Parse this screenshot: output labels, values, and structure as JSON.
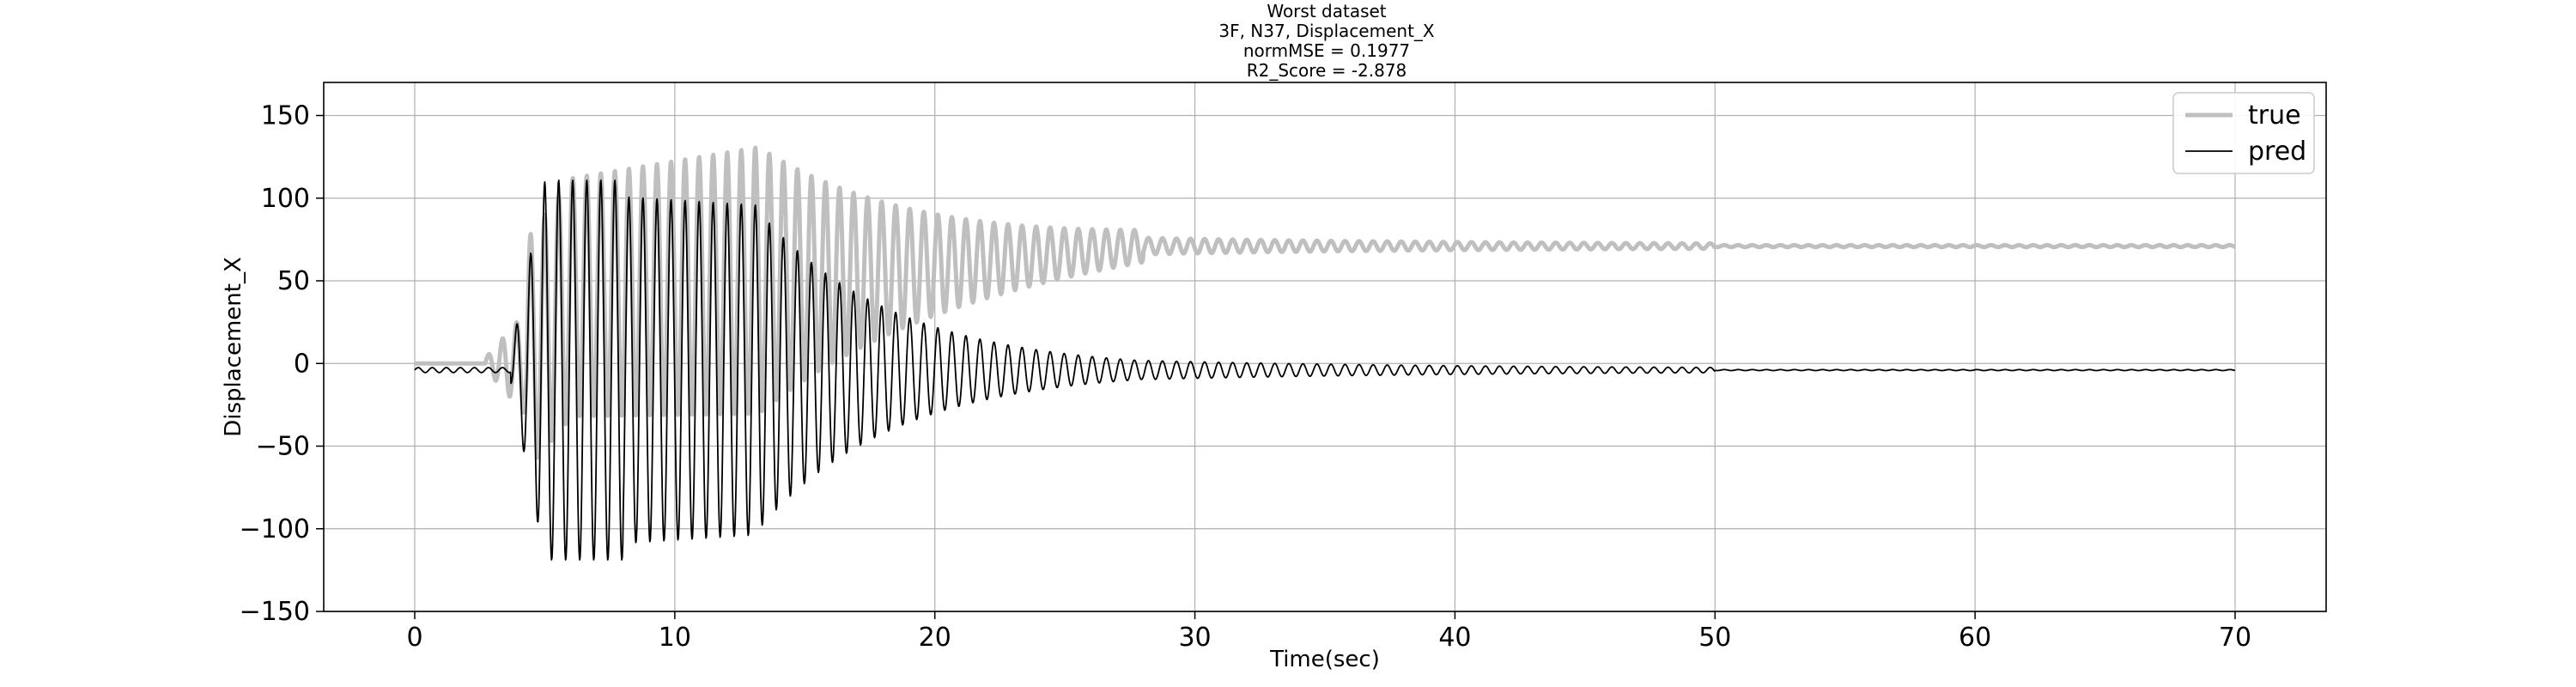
{
  "chart_data": {
    "type": "line",
    "title_lines": [
      "Worst dataset",
      "3F, N37, Displacement_X",
      "normMSE = 0.1977",
      "R2_Score = -2.878"
    ],
    "xlabel": "Time(sec)",
    "ylabel": "Displacement_X",
    "xlim": [
      -3.5,
      73.5
    ],
    "ylim": [
      -150,
      170
    ],
    "xticks": [
      0,
      10,
      20,
      30,
      40,
      50,
      60,
      70
    ],
    "yticks": [
      -150,
      -100,
      -50,
      0,
      50,
      100,
      150
    ],
    "xtick_labels": [
      "0",
      "10",
      "20",
      "30",
      "40",
      "50",
      "60",
      "70"
    ],
    "ytick_labels": [
      "−150",
      "−100",
      "−50",
      "0",
      "50",
      "100",
      "150"
    ],
    "grid": true,
    "legend_position": "top-right",
    "series": [
      {
        "name": "true",
        "color": "#bfbfbf",
        "points": [
          [
            0,
            0
          ],
          [
            2.7,
            0
          ],
          [
            3.5,
            -3
          ],
          [
            4.0,
            12
          ],
          [
            4.3,
            37
          ],
          [
            4.7,
            -5
          ],
          [
            5.0,
            75
          ],
          [
            5.2,
            115
          ],
          [
            6.5,
            140
          ],
          [
            8.2,
            152
          ],
          [
            10,
            145
          ],
          [
            13.3,
            157
          ],
          [
            14.5,
            125
          ],
          [
            17,
            118
          ],
          [
            20,
            110
          ],
          [
            23,
            97
          ],
          [
            26,
            80
          ],
          [
            28,
            74
          ],
          [
            29,
            72
          ],
          [
            30,
            72
          ],
          [
            35,
            71
          ],
          [
            45,
            71
          ],
          [
            50,
            71
          ],
          [
            55,
            71
          ],
          [
            70,
            71
          ]
        ]
      },
      {
        "name": "pred",
        "color": "#000000",
        "points": [
          [
            0,
            2
          ],
          [
            0.5,
            -3
          ],
          [
            1,
            -5
          ],
          [
            2,
            -5
          ],
          [
            3,
            -5
          ],
          [
            3.5,
            -7
          ],
          [
            4.0,
            10
          ],
          [
            4.3,
            28
          ],
          [
            4.6,
            -35
          ],
          [
            4.7,
            -72
          ],
          [
            5.0,
            98
          ],
          [
            5.4,
            -137
          ],
          [
            5.7,
            111
          ],
          [
            7.7,
            -121
          ],
          [
            8.0,
            109
          ],
          [
            13.2,
            -105
          ],
          [
            13.3,
            93
          ],
          [
            15,
            60
          ],
          [
            20,
            22
          ],
          [
            25,
            5
          ],
          [
            27.5,
            -3
          ],
          [
            30,
            -5
          ],
          [
            35,
            -4
          ],
          [
            40,
            -4
          ],
          [
            50,
            -4
          ],
          [
            60,
            -4
          ],
          [
            70,
            -4
          ]
        ]
      }
    ]
  }
}
